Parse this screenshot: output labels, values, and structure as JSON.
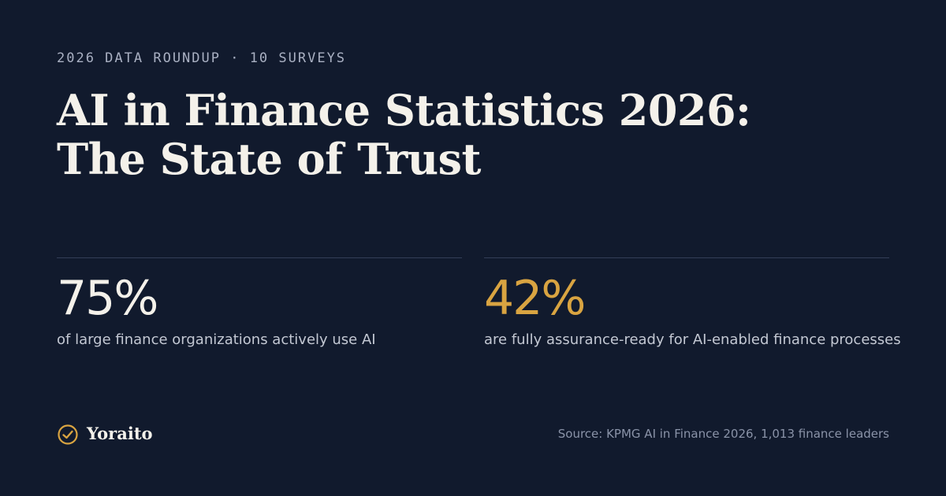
{
  "eyebrow": "2026 DATA ROUNDUP · 10 SURVEYS",
  "title_lines": [
    "AI in Finance Statistics 2026:",
    "The State of Trust"
  ],
  "stats": [
    {
      "value": "75%",
      "text": "of large finance organizations actively use AI"
    },
    {
      "value": "42%",
      "text": "are fully assurance-ready for AI-enabled finance processes"
    }
  ],
  "brand": "Yoraito",
  "source": "Source: KPMG AI in Finance 2026, 1,013 finance leaders"
}
